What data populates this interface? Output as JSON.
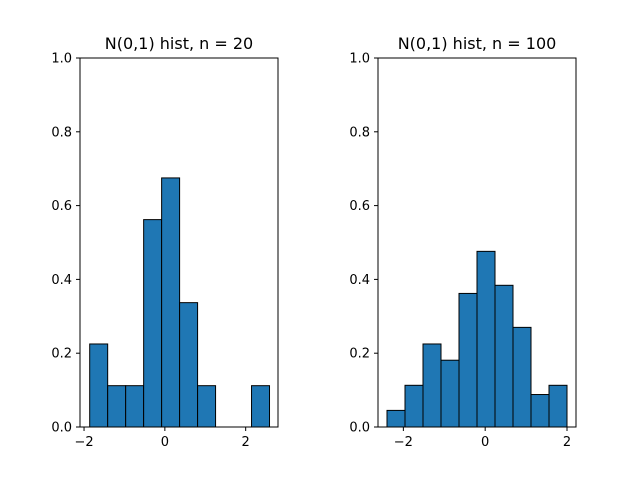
{
  "chart_data": [
    {
      "type": "bar",
      "title": "N(0,1) hist, n = 20",
      "xlabel": "",
      "ylabel": "",
      "xlim": [
        -2.1,
        2.8
      ],
      "ylim": [
        0,
        1.0
      ],
      "xticks": [
        -2,
        0,
        2
      ],
      "yticks": [
        0.0,
        0.2,
        0.4,
        0.6,
        0.8,
        1.0
      ],
      "bin_edges": [
        -1.86,
        -1.415,
        -0.97,
        -0.525,
        -0.08,
        0.365,
        0.81,
        1.255,
        1.7,
        2.145,
        2.59
      ],
      "values": [
        0.225,
        0.112,
        0.112,
        0.562,
        0.675,
        0.337,
        0.112,
        0.0,
        0.0,
        0.112
      ],
      "bar_color": "#1f77b4",
      "edge_color": "#000000",
      "grid": false
    },
    {
      "type": "bar",
      "title": "N(0,1) hist, n = 100",
      "xlabel": "",
      "ylabel": "",
      "xlim": [
        -2.62,
        2.22
      ],
      "ylim": [
        0,
        1.0
      ],
      "xticks": [
        -2,
        0,
        2
      ],
      "yticks": [
        0.0,
        0.2,
        0.4,
        0.6,
        0.8,
        1.0
      ],
      "bin_edges": [
        -2.4,
        -1.96,
        -1.52,
        -1.08,
        -0.64,
        -0.2,
        0.24,
        0.68,
        1.12,
        1.56,
        2.0
      ],
      "values": [
        0.045,
        0.113,
        0.225,
        0.181,
        0.362,
        0.476,
        0.384,
        0.27,
        0.088,
        0.113
      ],
      "bar_color": "#1f77b4",
      "edge_color": "#000000",
      "grid": false
    }
  ]
}
